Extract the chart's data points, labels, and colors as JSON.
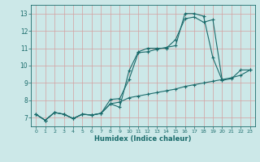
{
  "title": "",
  "xlabel": "Humidex (Indice chaleur)",
  "bg_color": "#cce8e8",
  "grid_color": "#c0d8d8",
  "line_color": "#1a6b6b",
  "xlim": [
    -0.5,
    23.5
  ],
  "ylim": [
    6.5,
    13.5
  ],
  "yticks": [
    7,
    8,
    9,
    10,
    11,
    12,
    13
  ],
  "xticks": [
    0,
    1,
    2,
    3,
    4,
    5,
    6,
    7,
    8,
    9,
    10,
    11,
    12,
    13,
    14,
    15,
    16,
    17,
    18,
    19,
    20,
    21,
    22,
    23
  ],
  "line1_x": [
    0,
    1,
    2,
    3,
    4,
    5,
    6,
    7,
    8,
    9,
    10,
    11,
    12,
    13,
    14,
    15,
    16,
    17,
    18,
    19,
    20,
    21,
    22,
    23
  ],
  "line1_y": [
    7.2,
    6.85,
    7.3,
    7.2,
    6.95,
    7.2,
    7.15,
    7.25,
    8.05,
    8.1,
    9.2,
    10.75,
    10.8,
    10.95,
    11.05,
    11.15,
    13.0,
    13.0,
    12.85,
    10.45,
    9.15,
    9.25,
    9.75,
    9.75
  ],
  "line2_x": [
    0,
    1,
    2,
    3,
    4,
    5,
    6,
    7,
    8,
    9,
    10,
    11,
    12,
    13,
    14,
    15,
    16,
    17,
    18,
    19,
    20
  ],
  "line2_y": [
    7.2,
    6.85,
    7.3,
    7.2,
    6.95,
    7.2,
    7.15,
    7.25,
    7.8,
    7.6,
    9.7,
    10.8,
    11.0,
    11.0,
    11.0,
    11.5,
    12.7,
    12.8,
    12.5,
    12.65,
    9.15
  ],
  "line3_x": [
    0,
    1,
    2,
    3,
    4,
    5,
    6,
    7,
    8,
    9,
    10,
    11,
    12,
    13,
    14,
    15,
    16,
    17,
    18,
    19,
    20,
    21,
    22,
    23
  ],
  "line3_y": [
    7.2,
    6.85,
    7.3,
    7.2,
    6.95,
    7.2,
    7.15,
    7.25,
    7.8,
    7.9,
    8.15,
    8.25,
    8.35,
    8.45,
    8.55,
    8.65,
    8.8,
    8.9,
    9.0,
    9.1,
    9.2,
    9.3,
    9.45,
    9.75
  ]
}
